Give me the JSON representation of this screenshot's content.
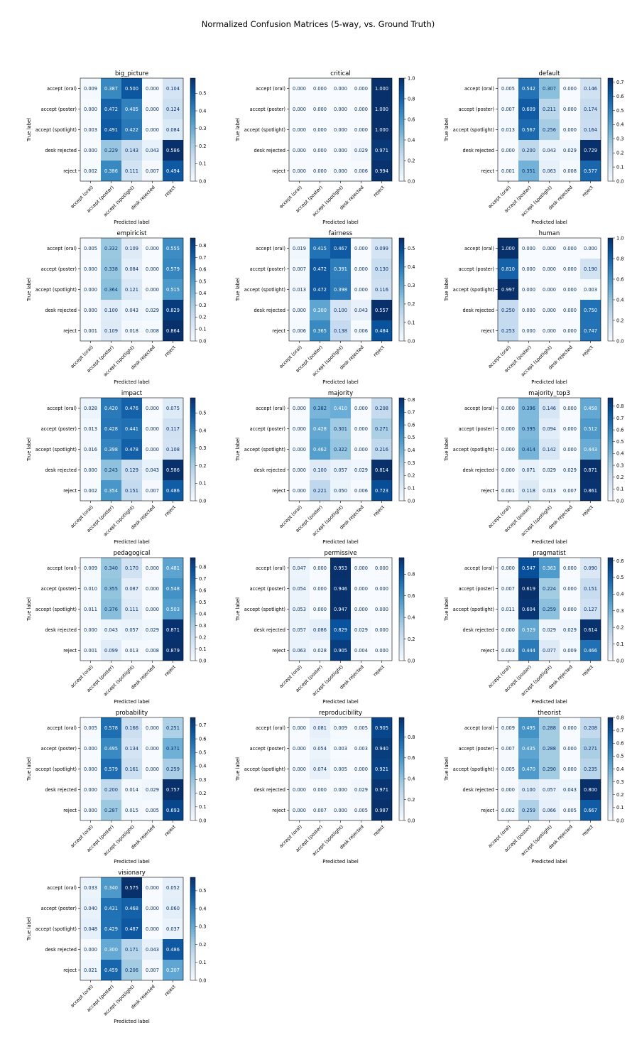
{
  "suptitle": "Normalized Confusion Matrices (5-way, vs. Ground Truth)",
  "chart_data": {
    "type": "heatmap",
    "colormap": "Blues",
    "xlabel": "Predicted label",
    "ylabel": "True label",
    "row_labels": [
      "accept (oral)",
      "accept (poster)",
      "accept (spotlight)",
      "desk rejected",
      "reject"
    ],
    "col_labels": [
      "accept (oral)",
      "accept (poster)",
      "accept (spotlight)",
      "desk rejected",
      "reject"
    ],
    "panels": [
      {
        "title": "big_picture",
        "vmax": 0.586,
        "ticks": [
          0.0,
          0.1,
          0.2,
          0.3,
          0.4,
          0.5
        ],
        "values": [
          [
            0.009,
            0.387,
            0.5,
            0.0,
            0.104
          ],
          [
            0.0,
            0.472,
            0.405,
            0.0,
            0.124
          ],
          [
            0.003,
            0.491,
            0.422,
            0.0,
            0.084
          ],
          [
            0.0,
            0.229,
            0.143,
            0.043,
            0.586
          ],
          [
            0.002,
            0.386,
            0.111,
            0.007,
            0.494
          ]
        ]
      },
      {
        "title": "critical",
        "vmax": 1.0,
        "ticks": [
          0.0,
          0.2,
          0.4,
          0.6,
          0.8,
          1.0
        ],
        "values": [
          [
            0.0,
            0.0,
            0.0,
            0.0,
            1.0
          ],
          [
            0.0,
            0.0,
            0.0,
            0.0,
            1.0
          ],
          [
            0.0,
            0.0,
            0.0,
            0.0,
            1.0
          ],
          [
            0.0,
            0.0,
            0.0,
            0.029,
            0.971
          ],
          [
            0.0,
            0.0,
            0.0,
            0.006,
            0.994
          ]
        ]
      },
      {
        "title": "default",
        "vmax": 0.729,
        "ticks": [
          0.0,
          0.1,
          0.2,
          0.3,
          0.4,
          0.5,
          0.6,
          0.7
        ],
        "values": [
          [
            0.005,
            0.542,
            0.307,
            0.0,
            0.146
          ],
          [
            0.007,
            0.609,
            0.211,
            0.0,
            0.174
          ],
          [
            0.013,
            0.567,
            0.256,
            0.0,
            0.164
          ],
          [
            0.0,
            0.2,
            0.043,
            0.029,
            0.729
          ],
          [
            0.001,
            0.351,
            0.063,
            0.008,
            0.577
          ]
        ]
      },
      {
        "title": "empiricist",
        "vmax": 0.864,
        "ticks": [
          0.0,
          0.1,
          0.2,
          0.3,
          0.4,
          0.5,
          0.6,
          0.7,
          0.8
        ],
        "values": [
          [
            0.005,
            0.332,
            0.109,
            0.0,
            0.555
          ],
          [
            0.0,
            0.338,
            0.084,
            0.0,
            0.579
          ],
          [
            0.0,
            0.364,
            0.121,
            0.0,
            0.515
          ],
          [
            0.0,
            0.1,
            0.043,
            0.029,
            0.829
          ],
          [
            0.001,
            0.109,
            0.018,
            0.008,
            0.864
          ]
        ]
      },
      {
        "title": "fairness",
        "vmax": 0.557,
        "ticks": [
          0.0,
          0.1,
          0.2,
          0.3,
          0.4,
          0.5
        ],
        "values": [
          [
            0.019,
            0.415,
            0.467,
            0.0,
            0.099
          ],
          [
            0.007,
            0.472,
            0.391,
            0.0,
            0.13
          ],
          [
            0.013,
            0.472,
            0.398,
            0.0,
            0.116
          ],
          [
            0.0,
            0.3,
            0.1,
            0.043,
            0.557
          ],
          [
            0.006,
            0.365,
            0.138,
            0.006,
            0.484
          ]
        ]
      },
      {
        "title": "human",
        "vmax": 1.0,
        "ticks": [
          0.0,
          0.2,
          0.4,
          0.6,
          0.8,
          1.0
        ],
        "values": [
          [
            1.0,
            0.0,
            0.0,
            0.0,
            0.0
          ],
          [
            0.81,
            0.0,
            0.0,
            0.0,
            0.19
          ],
          [
            0.997,
            0.0,
            0.0,
            0.0,
            0.003
          ],
          [
            0.25,
            0.0,
            0.0,
            0.0,
            0.75
          ],
          [
            0.253,
            0.0,
            0.0,
            0.0,
            0.747
          ]
        ]
      },
      {
        "title": "impact",
        "vmax": 0.586,
        "ticks": [
          0.0,
          0.1,
          0.2,
          0.3,
          0.4,
          0.5
        ],
        "values": [
          [
            0.028,
            0.42,
            0.476,
            0.0,
            0.075
          ],
          [
            0.013,
            0.428,
            0.441,
            0.0,
            0.117
          ],
          [
            0.016,
            0.398,
            0.478,
            0.0,
            0.108
          ],
          [
            0.0,
            0.243,
            0.129,
            0.043,
            0.586
          ],
          [
            0.002,
            0.354,
            0.151,
            0.007,
            0.486
          ]
        ]
      },
      {
        "title": "majority",
        "vmax": 0.814,
        "ticks": [
          0.0,
          0.1,
          0.2,
          0.3,
          0.4,
          0.5,
          0.6,
          0.7,
          0.8
        ],
        "values": [
          [
            0.0,
            0.382,
            0.41,
            0.0,
            0.208
          ],
          [
            0.0,
            0.428,
            0.301,
            0.0,
            0.271
          ],
          [
            0.0,
            0.462,
            0.322,
            0.0,
            0.216
          ],
          [
            0.0,
            0.1,
            0.057,
            0.029,
            0.814
          ],
          [
            0.0,
            0.221,
            0.05,
            0.006,
            0.723
          ]
        ]
      },
      {
        "title": "majority_top3",
        "vmax": 0.871,
        "ticks": [
          0.0,
          0.1,
          0.2,
          0.3,
          0.4,
          0.5,
          0.6,
          0.7,
          0.8
        ],
        "values": [
          [
            0.0,
            0.396,
            0.146,
            0.0,
            0.458
          ],
          [
            0.0,
            0.395,
            0.094,
            0.0,
            0.512
          ],
          [
            0.0,
            0.414,
            0.142,
            0.0,
            0.443
          ],
          [
            0.0,
            0.071,
            0.029,
            0.029,
            0.871
          ],
          [
            0.001,
            0.118,
            0.013,
            0.007,
            0.861
          ]
        ]
      },
      {
        "title": "pedagogical",
        "vmax": 0.879,
        "ticks": [
          0.0,
          0.1,
          0.2,
          0.3,
          0.4,
          0.5,
          0.6,
          0.7,
          0.8
        ],
        "values": [
          [
            0.009,
            0.34,
            0.17,
            0.0,
            0.481
          ],
          [
            0.01,
            0.355,
            0.087,
            0.0,
            0.548
          ],
          [
            0.011,
            0.376,
            0.111,
            0.0,
            0.503
          ],
          [
            0.0,
            0.043,
            0.057,
            0.029,
            0.871
          ],
          [
            0.001,
            0.099,
            0.013,
            0.008,
            0.879
          ]
        ]
      },
      {
        "title": "permissive",
        "vmax": 0.953,
        "ticks": [
          0.0,
          0.2,
          0.4,
          0.6,
          0.8
        ],
        "values": [
          [
            0.047,
            0.0,
            0.953,
            0.0,
            0.0
          ],
          [
            0.054,
            0.0,
            0.946,
            0.0,
            0.0
          ],
          [
            0.053,
            0.0,
            0.947,
            0.0,
            0.0
          ],
          [
            0.057,
            0.086,
            0.829,
            0.029,
            0.0
          ],
          [
            0.063,
            0.028,
            0.905,
            0.004,
            0.0
          ]
        ]
      },
      {
        "title": "pragmatist",
        "vmax": 0.619,
        "ticks": [
          0.0,
          0.1,
          0.2,
          0.3,
          0.4,
          0.5,
          0.6
        ],
        "values": [
          [
            0.0,
            0.547,
            0.363,
            0.0,
            0.09
          ],
          [
            0.007,
            0.619,
            0.224,
            0.0,
            0.151
          ],
          [
            0.011,
            0.604,
            0.259,
            0.0,
            0.127
          ],
          [
            0.0,
            0.329,
            0.029,
            0.029,
            0.614
          ],
          [
            0.003,
            0.444,
            0.077,
            0.009,
            0.466
          ]
        ]
      },
      {
        "title": "probability",
        "vmax": 0.757,
        "ticks": [
          0.0,
          0.1,
          0.2,
          0.3,
          0.4,
          0.5,
          0.6,
          0.7
        ],
        "values": [
          [
            0.005,
            0.578,
            0.166,
            0.0,
            0.251
          ],
          [
            0.0,
            0.495,
            0.134,
            0.0,
            0.371
          ],
          [
            0.0,
            0.579,
            0.161,
            0.0,
            0.259
          ],
          [
            0.0,
            0.2,
            0.014,
            0.029,
            0.757
          ],
          [
            0.0,
            0.287,
            0.015,
            0.005,
            0.693
          ]
        ]
      },
      {
        "title": "reproducibility",
        "vmax": 0.987,
        "ticks": [
          0.0,
          0.2,
          0.4,
          0.6,
          0.8
        ],
        "values": [
          [
            0.0,
            0.081,
            0.009,
            0.005,
            0.905
          ],
          [
            0.0,
            0.054,
            0.003,
            0.003,
            0.94
          ],
          [
            0.0,
            0.074,
            0.005,
            0.0,
            0.921
          ],
          [
            0.0,
            0.0,
            0.0,
            0.029,
            0.971
          ],
          [
            0.0,
            0.007,
            0.0,
            0.005,
            0.987
          ]
        ]
      },
      {
        "title": "theorist",
        "vmax": 0.8,
        "ticks": [
          0.0,
          0.1,
          0.2,
          0.3,
          0.4,
          0.5,
          0.6,
          0.7,
          0.8
        ],
        "values": [
          [
            0.009,
            0.495,
            0.288,
            0.0,
            0.208
          ],
          [
            0.007,
            0.435,
            0.288,
            0.0,
            0.271
          ],
          [
            0.005,
            0.47,
            0.29,
            0.0,
            0.235
          ],
          [
            0.0,
            0.1,
            0.057,
            0.043,
            0.8
          ],
          [
            0.002,
            0.259,
            0.066,
            0.005,
            0.667
          ]
        ]
      },
      {
        "title": "visionary",
        "vmax": 0.575,
        "ticks": [
          0.0,
          0.1,
          0.2,
          0.3,
          0.4,
          0.5
        ],
        "values": [
          [
            0.033,
            0.34,
            0.575,
            0.0,
            0.052
          ],
          [
            0.04,
            0.431,
            0.468,
            0.0,
            0.06
          ],
          [
            0.048,
            0.429,
            0.487,
            0.0,
            0.037
          ],
          [
            0.0,
            0.3,
            0.171,
            0.043,
            0.486
          ],
          [
            0.021,
            0.459,
            0.206,
            0.007,
            0.307
          ]
        ]
      }
    ]
  }
}
